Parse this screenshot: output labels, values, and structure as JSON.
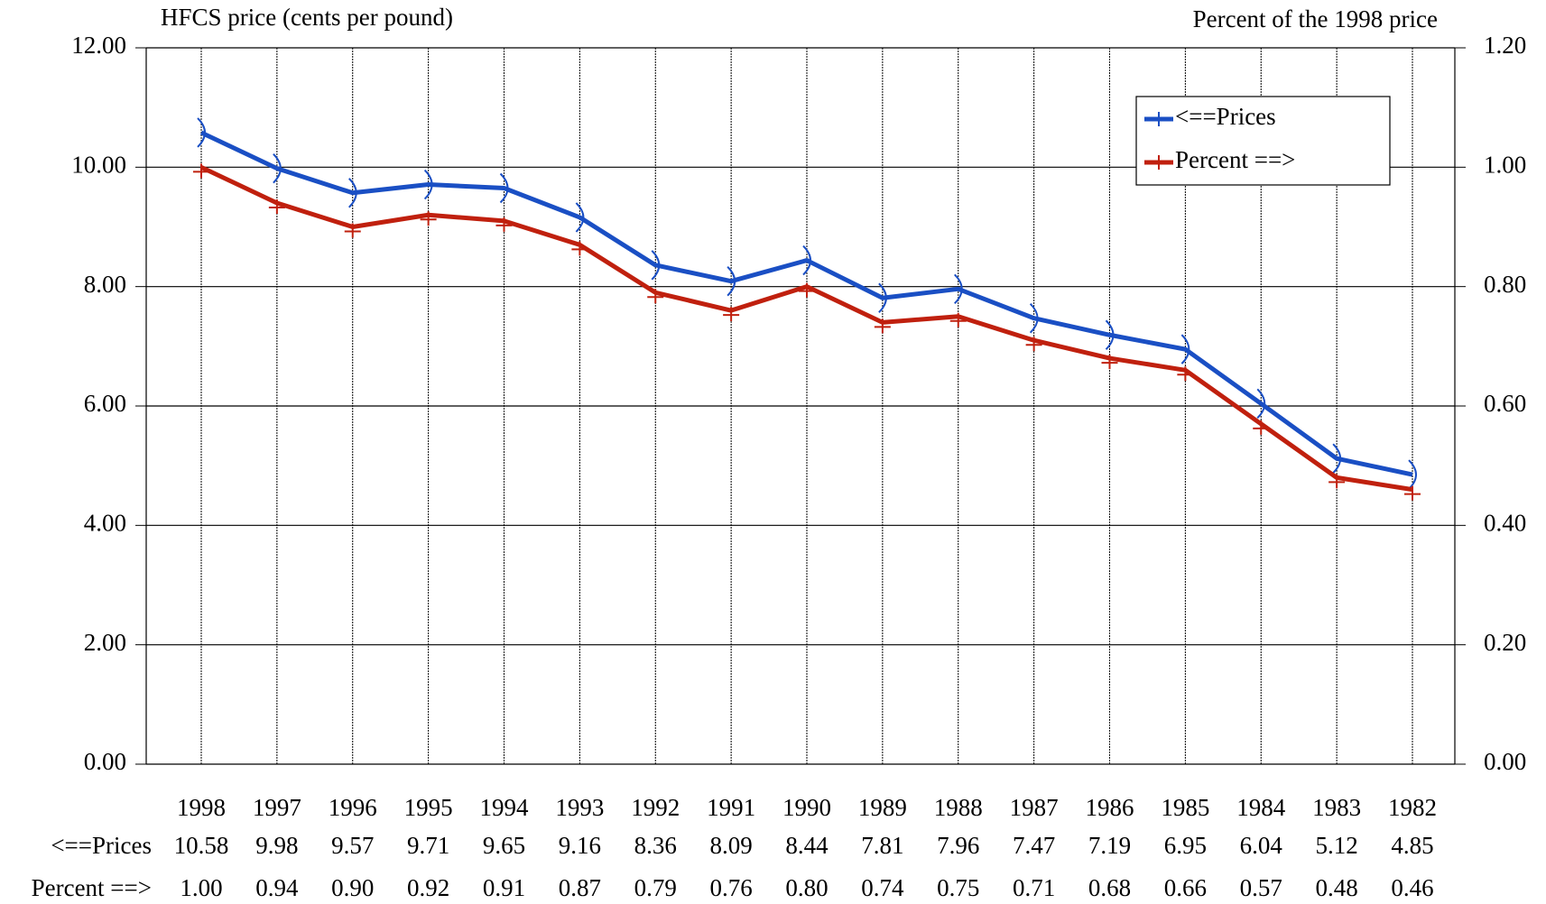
{
  "chart_data": {
    "type": "line",
    "y_label": "HFCS price (cents per pound)",
    "y2_label": "Percent of the 1998 price",
    "categories": [
      "1998",
      "1997",
      "1996",
      "1995",
      "1994",
      "1993",
      "1992",
      "1991",
      "1990",
      "1989",
      "1988",
      "1987",
      "1986",
      "1985",
      "1984",
      "1983",
      "1982"
    ],
    "series": [
      {
        "name": "<==Prices",
        "color": "#1a4fc4",
        "axis": "y",
        "values": [
          10.58,
          9.98,
          9.57,
          9.71,
          9.65,
          9.16,
          8.36,
          8.09,
          8.44,
          7.81,
          7.96,
          7.47,
          7.19,
          6.95,
          6.04,
          5.12,
          4.85
        ]
      },
      {
        "name": "Percent ==>",
        "color": "#c0200e",
        "axis": "y2",
        "values": [
          1,
          0.94,
          0.9,
          0.92,
          0.91,
          0.87,
          0.79,
          0.76,
          0.8,
          0.74,
          0.75,
          0.71,
          0.68,
          0.66,
          0.57,
          0.48,
          0.46
        ],
        "value_labels": [
          "1.00",
          "0.94",
          "0.90",
          "0.92",
          "0.91",
          "0.87",
          "0.79",
          "0.76",
          "0.80",
          "0.74",
          "0.75",
          "0.71",
          "0.68",
          "0.66",
          "0.57",
          "0.48",
          "0.46"
        ]
      }
    ],
    "ylim": [
      0,
      12
    ],
    "yticks": [
      {
        "value": 0,
        "label": "0.00"
      },
      {
        "value": 2,
        "label": "2.00"
      },
      {
        "value": 4,
        "label": "4.00"
      },
      {
        "value": 6,
        "label": "6.00"
      },
      {
        "value": 8,
        "label": "8.00"
      },
      {
        "value": 10,
        "label": "10.00"
      },
      {
        "value": 12,
        "label": "12.00"
      }
    ],
    "y2lim": [
      0,
      1.2
    ],
    "y2ticks": [
      {
        "value": 0,
        "label": "0.00"
      },
      {
        "value": 0.2,
        "label": "0.20"
      },
      {
        "value": 0.4,
        "label": "0.40"
      },
      {
        "value": 0.6,
        "label": "0.60"
      },
      {
        "value": 0.8,
        "label": "0.80"
      },
      {
        "value": 1,
        "label": "1.00"
      },
      {
        "value": 1.2,
        "label": "1.20"
      }
    ],
    "grid": true,
    "legend": "upper right"
  }
}
